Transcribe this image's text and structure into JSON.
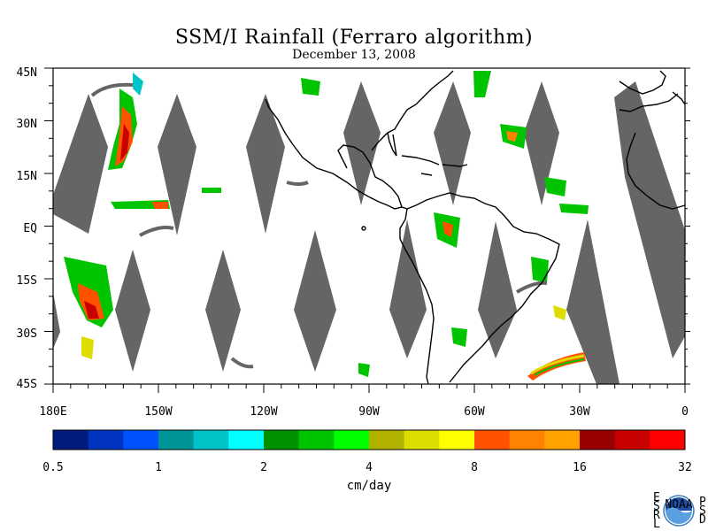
{
  "header": {
    "title": "SSM/I Rainfall (Ferraro algorithm)",
    "date": "December 13, 2008"
  },
  "map": {
    "lat_labels": [
      "45N",
      "30N",
      "15N",
      "EQ",
      "15S",
      "30S",
      "45S"
    ],
    "lon_labels": [
      "180E",
      "150W",
      "120W",
      "90W",
      "60W",
      "30W",
      "0"
    ],
    "swath_color": "#656565",
    "coast_color": "#000000"
  },
  "colorbar": {
    "tick_labels": [
      "0.5",
      "1",
      "2",
      "4",
      "8",
      "16",
      "32"
    ],
    "colors": [
      "#001b7d",
      "#0033c0",
      "#0052ff",
      "#009596",
      "#00c4c8",
      "#00ffff",
      "#009100",
      "#00c400",
      "#00ff00",
      "#b1b200",
      "#dddd00",
      "#ffff00",
      "#ff5200",
      "#ff8200",
      "#ffa200",
      "#980000",
      "#c80000",
      "#ff0000"
    ],
    "units": "cm/day"
  },
  "logo": {
    "left_letters": [
      "E",
      "S",
      "R",
      "L"
    ],
    "right_letters": [
      "P",
      "S",
      "D"
    ],
    "center_text": "NOAA"
  }
}
